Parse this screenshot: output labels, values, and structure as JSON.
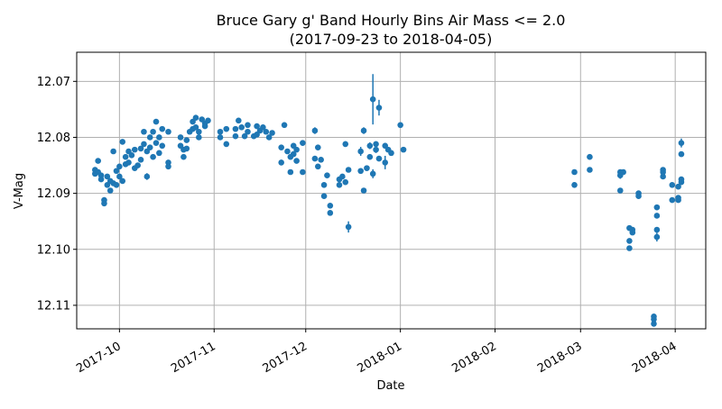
{
  "chart_data": {
    "type": "scatter",
    "title": "Bruce Gary g' Band Hourly Bins Air Mass <= 2.0",
    "subtitle": "(2017-09-23 to 2018-04-05)",
    "xlabel": "Date",
    "ylabel": "V-Mag",
    "y_inverted": true,
    "xlim": [
      "2017-09-17",
      "2018-04-11"
    ],
    "ylim": [
      12.1142,
      12.0648
    ],
    "grid": true,
    "colors": {
      "marker": "#1f77b4",
      "grid": "#b0b0b0"
    },
    "x_ticks": [
      {
        "date": "2017-10-01",
        "label": "2017-10"
      },
      {
        "date": "2017-11-01",
        "label": "2017-11"
      },
      {
        "date": "2017-12-01",
        "label": "2017-12"
      },
      {
        "date": "2018-01-01",
        "label": "2018-01"
      },
      {
        "date": "2018-02-01",
        "label": "2018-02"
      },
      {
        "date": "2018-03-01",
        "label": "2018-03"
      },
      {
        "date": "2018-04-01",
        "label": "2018-04"
      }
    ],
    "y_ticks": [
      {
        "value": 12.07,
        "label": "12.07"
      },
      {
        "value": 12.08,
        "label": "12.08"
      },
      {
        "value": 12.09,
        "label": "12.09"
      },
      {
        "value": 12.1,
        "label": "12.10"
      },
      {
        "value": 12.11,
        "label": "12.11"
      }
    ],
    "series": [
      {
        "points": [
          {
            "x": "2017-09-23",
            "y": 12.0865,
            "err": 0.0005
          },
          {
            "x": "2017-09-23",
            "y": 12.0858,
            "err": 0.0005
          },
          {
            "x": "2017-09-24",
            "y": 12.0842,
            "err": 0.0004
          },
          {
            "x": "2017-09-24",
            "y": 12.0862,
            "err": 0.0004
          },
          {
            "x": "2017-09-25",
            "y": 12.0875,
            "err": 0.0004
          },
          {
            "x": "2017-09-25",
            "y": 12.0868,
            "err": 0.0004
          },
          {
            "x": "2017-09-26",
            "y": 12.0912,
            "err": 0.0005
          },
          {
            "x": "2017-09-26",
            "y": 12.0918,
            "err": 0.0005
          },
          {
            "x": "2017-09-27",
            "y": 12.0885,
            "err": 0.0004
          },
          {
            "x": "2017-09-27",
            "y": 12.087,
            "err": 0.0004
          },
          {
            "x": "2017-09-28",
            "y": 12.0895,
            "err": 0.0004
          },
          {
            "x": "2017-09-28",
            "y": 12.0878,
            "err": 0.0004
          },
          {
            "x": "2017-09-29",
            "y": 12.0825,
            "err": 0.0004
          },
          {
            "x": "2017-09-29",
            "y": 12.0882,
            "err": 0.0004
          },
          {
            "x": "2017-09-30",
            "y": 12.086,
            "err": 0.0004
          },
          {
            "x": "2017-09-30",
            "y": 12.0885,
            "err": 0.0004
          },
          {
            "x": "2017-10-01",
            "y": 12.0852,
            "err": 0.0004
          },
          {
            "x": "2017-10-01",
            "y": 12.087,
            "err": 0.0004
          },
          {
            "x": "2017-10-02",
            "y": 12.0808,
            "err": 0.0004
          },
          {
            "x": "2017-10-02",
            "y": 12.0878,
            "err": 0.0004
          },
          {
            "x": "2017-10-03",
            "y": 12.0848,
            "err": 0.0004
          },
          {
            "x": "2017-10-03",
            "y": 12.0835,
            "err": 0.0004
          },
          {
            "x": "2017-10-04",
            "y": 12.0825,
            "err": 0.0004
          },
          {
            "x": "2017-10-04",
            "y": 12.0845,
            "err": 0.0004
          },
          {
            "x": "2017-10-05",
            "y": 12.0832,
            "err": 0.0004
          },
          {
            "x": "2017-10-06",
            "y": 12.0822,
            "err": 0.0004
          },
          {
            "x": "2017-10-06",
            "y": 12.0855,
            "err": 0.0004
          },
          {
            "x": "2017-10-07",
            "y": 12.085,
            "err": 0.0004
          },
          {
            "x": "2017-10-08",
            "y": 12.082,
            "err": 0.0004
          },
          {
            "x": "2017-10-08",
            "y": 12.084,
            "err": 0.0004
          },
          {
            "x": "2017-10-09",
            "y": 12.0812,
            "err": 0.0004
          },
          {
            "x": "2017-10-09",
            "y": 12.079,
            "err": 0.0004
          },
          {
            "x": "2017-10-10",
            "y": 12.087,
            "err": 0.0006
          },
          {
            "x": "2017-10-10",
            "y": 12.0825,
            "err": 0.0004
          },
          {
            "x": "2017-10-11",
            "y": 12.0818,
            "err": 0.0004
          },
          {
            "x": "2017-10-11",
            "y": 12.08,
            "err": 0.0004
          },
          {
            "x": "2017-10-12",
            "y": 12.0835,
            "err": 0.0004
          },
          {
            "x": "2017-10-12",
            "y": 12.079,
            "err": 0.0004
          },
          {
            "x": "2017-10-13",
            "y": 12.0772,
            "err": 0.0004
          },
          {
            "x": "2017-10-13",
            "y": 12.081,
            "err": 0.0004
          },
          {
            "x": "2017-10-14",
            "y": 12.0828,
            "err": 0.0004
          },
          {
            "x": "2017-10-14",
            "y": 12.08,
            "err": 0.0004
          },
          {
            "x": "2017-10-15",
            "y": 12.0785,
            "err": 0.0004
          },
          {
            "x": "2017-10-15",
            "y": 12.0815,
            "err": 0.0004
          },
          {
            "x": "2017-10-17",
            "y": 12.0845,
            "err": 0.0004
          },
          {
            "x": "2017-10-17",
            "y": 12.0852,
            "err": 0.0004
          },
          {
            "x": "2017-10-17",
            "y": 12.079,
            "err": 0.0004
          },
          {
            "x": "2017-10-21",
            "y": 12.08,
            "err": 0.0004
          },
          {
            "x": "2017-10-21",
            "y": 12.0815,
            "err": 0.0004
          },
          {
            "x": "2017-10-22",
            "y": 12.0822,
            "err": 0.0004
          },
          {
            "x": "2017-10-22",
            "y": 12.0835,
            "err": 0.0004
          },
          {
            "x": "2017-10-23",
            "y": 12.0805,
            "err": 0.0004
          },
          {
            "x": "2017-10-23",
            "y": 12.082,
            "err": 0.0004
          },
          {
            "x": "2017-10-24",
            "y": 12.079,
            "err": 0.0004
          },
          {
            "x": "2017-10-25",
            "y": 12.0785,
            "err": 0.0004
          },
          {
            "x": "2017-10-25",
            "y": 12.0772,
            "err": 0.0004
          },
          {
            "x": "2017-10-26",
            "y": 12.0765,
            "err": 0.0004
          },
          {
            "x": "2017-10-26",
            "y": 12.0782,
            "err": 0.0004
          },
          {
            "x": "2017-10-27",
            "y": 12.079,
            "err": 0.0004
          },
          {
            "x": "2017-10-27",
            "y": 12.08,
            "err": 0.0004
          },
          {
            "x": "2017-10-28",
            "y": 12.0768,
            "err": 0.0004
          },
          {
            "x": "2017-10-29",
            "y": 12.0775,
            "err": 0.0004
          },
          {
            "x": "2017-10-29",
            "y": 12.078,
            "err": 0.0004
          },
          {
            "x": "2017-10-30",
            "y": 12.077,
            "err": 0.0004
          },
          {
            "x": "2017-11-03",
            "y": 12.079,
            "err": 0.0004
          },
          {
            "x": "2017-11-03",
            "y": 12.08,
            "err": 0.0004
          },
          {
            "x": "2017-11-05",
            "y": 12.0812,
            "err": 0.0005
          },
          {
            "x": "2017-11-05",
            "y": 12.0785,
            "err": 0.0004
          },
          {
            "x": "2017-11-08",
            "y": 12.0785,
            "err": 0.0004
          },
          {
            "x": "2017-11-08",
            "y": 12.0798,
            "err": 0.0004
          },
          {
            "x": "2017-11-09",
            "y": 12.077,
            "err": 0.0004
          },
          {
            "x": "2017-11-10",
            "y": 12.0782,
            "err": 0.0004
          },
          {
            "x": "2017-11-11",
            "y": 12.0798,
            "err": 0.0004
          },
          {
            "x": "2017-11-12",
            "y": 12.0778,
            "err": 0.0004
          },
          {
            "x": "2017-11-12",
            "y": 12.079,
            "err": 0.0004
          },
          {
            "x": "2017-11-14",
            "y": 12.0798,
            "err": 0.0004
          },
          {
            "x": "2017-11-15",
            "y": 12.078,
            "err": 0.0004
          },
          {
            "x": "2017-11-15",
            "y": 12.0795,
            "err": 0.0004
          },
          {
            "x": "2017-11-16",
            "y": 12.0788,
            "err": 0.0004
          },
          {
            "x": "2017-11-17",
            "y": 12.0782,
            "err": 0.0004
          },
          {
            "x": "2017-11-18",
            "y": 12.079,
            "err": 0.0004
          },
          {
            "x": "2017-11-19",
            "y": 12.08,
            "err": 0.0004
          },
          {
            "x": "2017-11-20",
            "y": 12.0792,
            "err": 0.0004
          },
          {
            "x": "2017-11-23",
            "y": 12.0818,
            "err": 0.0004
          },
          {
            "x": "2017-11-23",
            "y": 12.0845,
            "err": 0.0005
          },
          {
            "x": "2017-11-24",
            "y": 12.0778,
            "err": 0.0005
          },
          {
            "x": "2017-11-25",
            "y": 12.0825,
            "err": 0.0004
          },
          {
            "x": "2017-11-26",
            "y": 12.0862,
            "err": 0.0004
          },
          {
            "x": "2017-11-26",
            "y": 12.0835,
            "err": 0.0004
          },
          {
            "x": "2017-11-27",
            "y": 12.0815,
            "err": 0.0004
          },
          {
            "x": "2017-11-27",
            "y": 12.083,
            "err": 0.0004
          },
          {
            "x": "2017-11-28",
            "y": 12.0842,
            "err": 0.0004
          },
          {
            "x": "2017-11-28",
            "y": 12.0822,
            "err": 0.0004
          },
          {
            "x": "2017-11-30",
            "y": 12.081,
            "err": 0.0005
          },
          {
            "x": "2017-11-30",
            "y": 12.0862,
            "err": 0.0004
          },
          {
            "x": "2017-12-04",
            "y": 12.0788,
            "err": 0.0006
          },
          {
            "x": "2017-12-04",
            "y": 12.0838,
            "err": 0.0004
          },
          {
            "x": "2017-12-05",
            "y": 12.0818,
            "err": 0.0005
          },
          {
            "x": "2017-12-05",
            "y": 12.0852,
            "err": 0.0004
          },
          {
            "x": "2017-12-06",
            "y": 12.084,
            "err": 0.0004
          },
          {
            "x": "2017-12-07",
            "y": 12.0905,
            "err": 0.0004
          },
          {
            "x": "2017-12-07",
            "y": 12.0885,
            "err": 0.0004
          },
          {
            "x": "2017-12-08",
            "y": 12.0868,
            "err": 0.0004
          },
          {
            "x": "2017-12-09",
            "y": 12.0922,
            "err": 0.0004
          },
          {
            "x": "2017-12-09",
            "y": 12.0935,
            "err": 0.0004
          },
          {
            "x": "2017-12-12",
            "y": 12.0875,
            "err": 0.0005
          },
          {
            "x": "2017-12-12",
            "y": 12.0885,
            "err": 0.0004
          },
          {
            "x": "2017-12-13",
            "y": 12.087,
            "err": 0.0004
          },
          {
            "x": "2017-12-14",
            "y": 12.088,
            "err": 0.0004
          },
          {
            "x": "2017-12-14",
            "y": 12.0812,
            "err": 0.0005
          },
          {
            "x": "2017-12-15",
            "y": 12.0858,
            "err": 0.0004
          },
          {
            "x": "2017-12-15",
            "y": 12.096,
            "err": 0.001
          },
          {
            "x": "2017-12-19",
            "y": 12.086,
            "err": 0.0005
          },
          {
            "x": "2017-12-19",
            "y": 12.0825,
            "err": 0.0008
          },
          {
            "x": "2017-12-20",
            "y": 12.0895,
            "err": 0.0004
          },
          {
            "x": "2017-12-20",
            "y": 12.0788,
            "err": 0.0006
          },
          {
            "x": "2017-12-21",
            "y": 12.0855,
            "err": 0.0004
          },
          {
            "x": "2017-12-22",
            "y": 12.0815,
            "err": 0.0006
          },
          {
            "x": "2017-12-22",
            "y": 12.0835,
            "err": 0.0004
          },
          {
            "x": "2017-12-23",
            "y": 12.0732,
            "err": 0.0045
          },
          {
            "x": "2017-12-23",
            "y": 12.0865,
            "err": 0.0008
          },
          {
            "x": "2017-12-24",
            "y": 12.0822,
            "err": 0.0006
          },
          {
            "x": "2017-12-24",
            "y": 12.0812,
            "err": 0.0005
          },
          {
            "x": "2017-12-25",
            "y": 12.0747,
            "err": 0.0014
          },
          {
            "x": "2017-12-25",
            "y": 12.0838,
            "err": 0.0004
          },
          {
            "x": "2017-12-27",
            "y": 12.0815,
            "err": 0.0005
          },
          {
            "x": "2017-12-27",
            "y": 12.0845,
            "err": 0.0012
          },
          {
            "x": "2017-12-28",
            "y": 12.0822,
            "err": 0.0004
          },
          {
            "x": "2017-12-29",
            "y": 12.0828,
            "err": 0.0004
          },
          {
            "x": "2018-01-01",
            "y": 12.0778,
            "err": 0.0004
          },
          {
            "x": "2018-01-02",
            "y": 12.0822,
            "err": 0.0004
          },
          {
            "x": "2018-02-27",
            "y": 12.0862,
            "err": 0.0004
          },
          {
            "x": "2018-02-27",
            "y": 12.0885,
            "err": 0.0004
          },
          {
            "x": "2018-03-04",
            "y": 12.0835,
            "err": 0.0004
          },
          {
            "x": "2018-03-04",
            "y": 12.0858,
            "err": 0.0004
          },
          {
            "x": "2018-03-14",
            "y": 12.0862,
            "err": 0.0004
          },
          {
            "x": "2018-03-14",
            "y": 12.0868,
            "err": 0.0006
          },
          {
            "x": "2018-03-15",
            "y": 12.0862,
            "err": 0.0004
          },
          {
            "x": "2018-03-14",
            "y": 12.0895,
            "err": 0.0004
          },
          {
            "x": "2018-03-17",
            "y": 12.0962,
            "err": 0.0004
          },
          {
            "x": "2018-03-17",
            "y": 12.0985,
            "err": 0.0004
          },
          {
            "x": "2018-03-17",
            "y": 12.0998,
            "err": 0.0004
          },
          {
            "x": "2018-03-18",
            "y": 12.0965,
            "err": 0.0004
          },
          {
            "x": "2018-03-18",
            "y": 12.097,
            "err": 0.0004
          },
          {
            "x": "2018-03-20",
            "y": 12.09,
            "err": 0.0005
          },
          {
            "x": "2018-03-20",
            "y": 12.0905,
            "err": 0.0004
          },
          {
            "x": "2018-03-25",
            "y": 12.112,
            "err": 0.0004
          },
          {
            "x": "2018-03-25",
            "y": 12.1125,
            "err": 0.0004
          },
          {
            "x": "2018-03-25",
            "y": 12.1133,
            "err": 0.0004
          },
          {
            "x": "2018-03-26",
            "y": 12.0925,
            "err": 0.0004
          },
          {
            "x": "2018-03-26",
            "y": 12.094,
            "err": 0.0004
          },
          {
            "x": "2018-03-26",
            "y": 12.0965,
            "err": 0.0004
          },
          {
            "x": "2018-03-26",
            "y": 12.0978,
            "err": 0.0008
          },
          {
            "x": "2018-03-28",
            "y": 12.0858,
            "err": 0.0004
          },
          {
            "x": "2018-03-28",
            "y": 12.0862,
            "err": 0.0004
          },
          {
            "x": "2018-03-28",
            "y": 12.087,
            "err": 0.0004
          },
          {
            "x": "2018-03-31",
            "y": 12.0885,
            "err": 0.0004
          },
          {
            "x": "2018-03-31",
            "y": 12.0912,
            "err": 0.0004
          },
          {
            "x": "2018-04-02",
            "y": 12.0888,
            "err": 0.0004
          },
          {
            "x": "2018-04-02",
            "y": 12.0908,
            "err": 0.0004
          },
          {
            "x": "2018-04-02",
            "y": 12.0912,
            "err": 0.0004
          },
          {
            "x": "2018-04-03",
            "y": 12.088,
            "err": 0.0004
          },
          {
            "x": "2018-04-03",
            "y": 12.0875,
            "err": 0.0004
          },
          {
            "x": "2018-04-03",
            "y": 12.083,
            "err": 0.0004
          },
          {
            "x": "2018-04-03",
            "y": 12.081,
            "err": 0.0008
          }
        ]
      }
    ]
  }
}
